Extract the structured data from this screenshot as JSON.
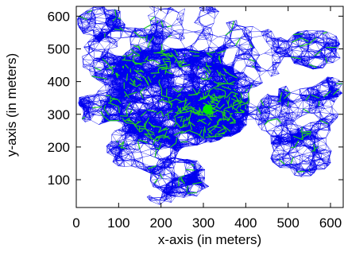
{
  "chart_data": {
    "type": "scatter",
    "title": "",
    "xlabel": "x-axis (in meters)",
    "ylabel": "y-axis (in meters)",
    "xlim": [
      0,
      630
    ],
    "ylim": [
      15,
      630
    ],
    "xticks": [
      0,
      100,
      200,
      300,
      400,
      500,
      600
    ],
    "yticks": [
      100,
      200,
      300,
      400,
      500,
      600
    ],
    "grid": false,
    "legend": "none",
    "colors": {
      "mesh": "#0000ee",
      "highlight_links": "#22cc22",
      "sink_node": "#00ee00",
      "node_points": "#ff3333",
      "frame": "#000000"
    },
    "series": [
      {
        "marker": "sink node",
        "x": [
          310
        ],
        "y": [
          315
        ]
      }
    ]
  }
}
